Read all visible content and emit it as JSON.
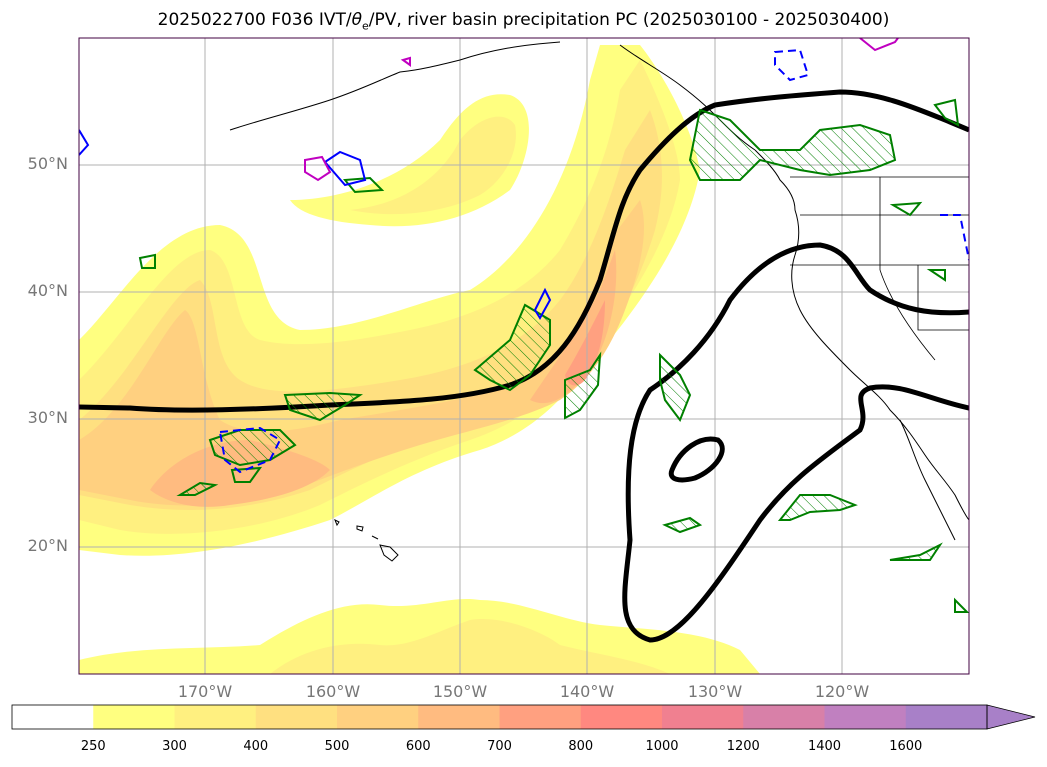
{
  "title": "2025022700 F036 IVT/θe/PV, river basin precipitation PC (2025030100 - 2025030400)",
  "title_parts": {
    "prefix": "2025022700 F036 IVT/",
    "theta": "θ",
    "sub_e": "e",
    "suffix": "/PV, river basin precipitation PC (2025030100 - 2025030400)"
  },
  "lat_labels": [
    "50°N",
    "40°N",
    "30°N",
    "20°N"
  ],
  "lon_labels": [
    "170°W",
    "160°W",
    "150°W",
    "140°W",
    "130°W",
    "120°W"
  ],
  "colorbar": {
    "ticks": [
      "250",
      "300",
      "400",
      "500",
      "600",
      "700",
      "800",
      "1000",
      "1200",
      "1400",
      "1600"
    ],
    "colors": [
      "#ffffff",
      "#ffff80",
      "#fff080",
      "#ffe080",
      "#ffd080",
      "#ffbb80",
      "#ffa080",
      "#ff8880",
      "#f08090",
      "#d880a8",
      "#c080c0",
      "#a880c8"
    ],
    "extend": "max"
  },
  "legend_colors": {
    "ivt_fill": "#ffff80",
    "theta_e_contour": "#000000",
    "pv_positive": "#008000",
    "pv_negative": "#0000ff",
    "pv_magenta": "#c000c0"
  }
}
